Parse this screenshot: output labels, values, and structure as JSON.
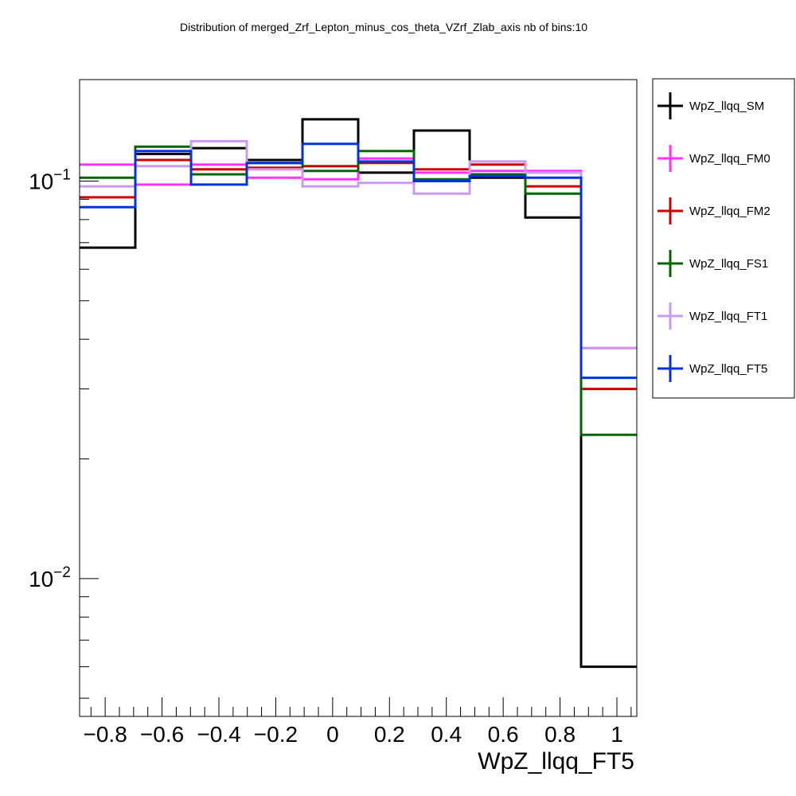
{
  "chart_data": {
    "type": "step-histogram",
    "title": "Distribution of merged_Zrf_Lepton_minus_cos_theta_VZrf_Zlab_axis nb of bins:10",
    "xlabel": "WpZ_llqq_FT5",
    "ylabel": "",
    "xlim": [
      -0.89,
      1.07
    ],
    "ylim": [
      0.0045,
      0.18
    ],
    "y_scale": "log",
    "bin_edges": [
      -0.89,
      -0.694,
      -0.498,
      -0.302,
      -0.106,
      0.09,
      0.286,
      0.482,
      0.678,
      0.874,
      1.07
    ],
    "x_tick_labels": [
      "−0.8",
      "−0.6",
      "−0.4",
      "−0.2",
      "0",
      "0.2",
      "0.4",
      "0.6",
      "0.8",
      "1"
    ],
    "x_tick_values": [
      -0.8,
      -0.6,
      -0.4,
      -0.2,
      0,
      0.2,
      0.4,
      0.6,
      0.8,
      1
    ],
    "y_tick_labels": [
      {
        "base": "10",
        "exp": "−1",
        "value": 0.1
      },
      {
        "base": "10",
        "exp": "−2",
        "value": 0.01
      }
    ],
    "legend_position": "right",
    "series": [
      {
        "name": "WpZ_llqq_SM",
        "color": "#000000",
        "values": [
          0.068,
          0.117,
          0.121,
          0.113,
          0.143,
          0.105,
          0.134,
          0.102,
          0.081,
          0.006
        ]
      },
      {
        "name": "WpZ_llqq_FM0",
        "color": "#ff33ff",
        "values": [
          0.11,
          0.098,
          0.11,
          0.102,
          0.101,
          0.114,
          0.105,
          0.106,
          0.106,
          0.038
        ]
      },
      {
        "name": "WpZ_llqq_FM2",
        "color": "#cc0000",
        "values": [
          0.091,
          0.113,
          0.107,
          0.108,
          0.109,
          0.111,
          0.107,
          0.11,
          0.097,
          0.03
        ]
      },
      {
        "name": "WpZ_llqq_FS1",
        "color": "#006600",
        "values": [
          0.102,
          0.122,
          0.104,
          0.111,
          0.106,
          0.119,
          0.101,
          0.104,
          0.093,
          0.023
        ]
      },
      {
        "name": "WpZ_llqq_FT1",
        "color": "#cc99ee",
        "values": [
          0.097,
          0.109,
          0.126,
          0.107,
          0.097,
          0.099,
          0.093,
          0.112,
          0.105,
          0.038
        ]
      },
      {
        "name": "WpZ_llqq_FT5",
        "color": "#0033dd",
        "values": [
          0.086,
          0.119,
          0.098,
          0.111,
          0.124,
          0.112,
          0.1,
          0.103,
          0.102,
          0.032
        ]
      }
    ]
  }
}
